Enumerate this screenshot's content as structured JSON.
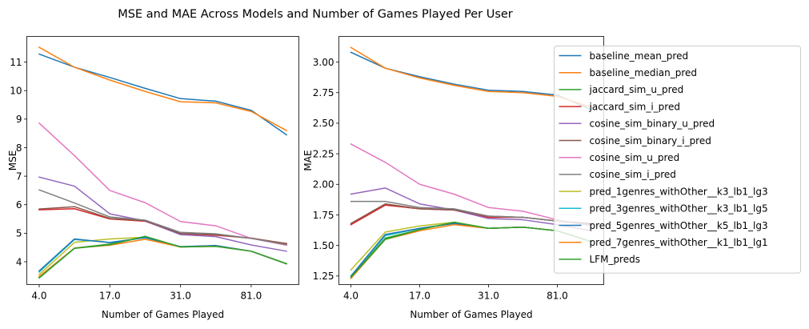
{
  "figure_title": "MSE and MAE Across Models and Number of Games Played Per User",
  "chart_data": [
    {
      "type": "line",
      "xlabel": "Number of Games Played",
      "ylabel": "MSE",
      "x": [
        0,
        1,
        2,
        3,
        4,
        5,
        6,
        7
      ],
      "x_tick_positions": [
        0,
        2,
        4,
        6
      ],
      "x_tick_labels": [
        "4.0",
        "17.0",
        "31.0",
        "81.0"
      ],
      "xlim": [
        -0.35,
        7.35
      ],
      "ylim": [
        3.2,
        11.9
      ],
      "y_ticks": [
        4,
        5,
        6,
        7,
        8,
        9,
        10,
        11
      ],
      "grid": false,
      "series": [
        {
          "name": "baseline_mean_pred",
          "color": "#1f77b4",
          "values": [
            11.28,
            10.82,
            10.46,
            10.08,
            9.72,
            9.63,
            9.31,
            8.45
          ]
        },
        {
          "name": "baseline_median_pred",
          "color": "#ff7f0e",
          "values": [
            11.52,
            10.82,
            10.37,
            9.97,
            9.61,
            9.57,
            9.27,
            8.6
          ]
        },
        {
          "name": "jaccard_sim_u_pred",
          "color": "#2ca02c",
          "values": [
            3.43,
            4.48,
            4.62,
            4.87,
            4.52,
            4.55,
            4.37,
            3.93
          ]
        },
        {
          "name": "jaccard_sim_i_pred",
          "color": "#d62728",
          "values": [
            5.82,
            5.86,
            5.5,
            5.42,
            4.98,
            4.93,
            4.83,
            4.63
          ]
        },
        {
          "name": "cosine_sim_binary_u_pred",
          "color": "#9467bd",
          "values": [
            6.97,
            6.65,
            5.68,
            5.43,
            4.95,
            4.88,
            4.59,
            4.37
          ]
        },
        {
          "name": "cosine_sim_binary_i_pred",
          "color": "#8c564b",
          "values": [
            5.85,
            5.93,
            5.52,
            5.44,
            4.99,
            4.95,
            4.82,
            4.64
          ]
        },
        {
          "name": "cosine_sim_u_pred",
          "color": "#e377c2",
          "values": [
            8.86,
            7.72,
            6.5,
            6.07,
            5.41,
            5.26,
            4.82,
            4.58
          ]
        },
        {
          "name": "cosine_sim_i_pred",
          "color": "#7f7f7f",
          "values": [
            6.52,
            6.06,
            5.57,
            5.46,
            5.03,
            4.98,
            4.82,
            4.6
          ]
        },
        {
          "name": "pred_1genres_withOther__k3_lb1_lg3",
          "color": "#bcbd22",
          "values": [
            3.55,
            4.68,
            4.8,
            4.86,
            4.52,
            4.55,
            4.37,
            3.93
          ]
        },
        {
          "name": "pred_3genres_withOther__k3_lb1_lg5",
          "color": "#17becf",
          "values": [
            3.64,
            4.78,
            4.68,
            4.84,
            4.53,
            4.56,
            4.37,
            3.93
          ]
        },
        {
          "name": "pred_5genres_withOther__k5_lb1_lg3",
          "color": "#1f77b4",
          "values": [
            3.68,
            4.8,
            4.67,
            4.85,
            4.53,
            4.57,
            4.37,
            3.93
          ]
        },
        {
          "name": "pred_7genres_withOther__k1_lb1_lg1",
          "color": "#ff7f0e",
          "values": [
            3.48,
            4.48,
            4.58,
            4.79,
            4.52,
            4.54,
            4.37,
            3.93
          ]
        },
        {
          "name": "LFM_preds",
          "color": "#2ca02c",
          "values": [
            3.44,
            4.47,
            4.6,
            4.89,
            4.52,
            4.54,
            4.37,
            3.93
          ]
        }
      ]
    },
    {
      "type": "line",
      "xlabel": "Number of Games Played",
      "ylabel": "MAE",
      "x": [
        0,
        1,
        2,
        3,
        4,
        5,
        6,
        7
      ],
      "x_tick_positions": [
        0,
        2,
        4,
        6
      ],
      "x_tick_labels": [
        "4.0",
        "17.0",
        "31.0",
        "81.0"
      ],
      "xlim": [
        -0.35,
        7.35
      ],
      "ylim": [
        1.18,
        3.21
      ],
      "y_ticks": [
        1.25,
        1.5,
        1.75,
        2.0,
        2.25,
        2.5,
        2.75,
        3.0
      ],
      "y_tick_labels": [
        "1.25",
        "1.50",
        "1.75",
        "2.00",
        "2.25",
        "2.50",
        "2.75",
        "3.00"
      ],
      "grid": false,
      "series": [
        {
          "name": "baseline_mean_pred",
          "color": "#1f77b4",
          "values": [
            3.08,
            2.95,
            2.88,
            2.82,
            2.77,
            2.76,
            2.73,
            2.61
          ]
        },
        {
          "name": "baseline_median_pred",
          "color": "#ff7f0e",
          "values": [
            3.12,
            2.95,
            2.87,
            2.81,
            2.76,
            2.75,
            2.72,
            2.63
          ]
        },
        {
          "name": "jaccard_sim_u_pred",
          "color": "#2ca02c",
          "values": [
            1.24,
            1.56,
            1.63,
            1.69,
            1.64,
            1.65,
            1.62,
            1.53
          ]
        },
        {
          "name": "jaccard_sim_i_pred",
          "color": "#d62728",
          "values": [
            1.67,
            1.83,
            1.8,
            1.79,
            1.73,
            1.73,
            1.7,
            1.67
          ]
        },
        {
          "name": "cosine_sim_binary_u_pred",
          "color": "#9467bd",
          "values": [
            1.92,
            1.97,
            1.84,
            1.79,
            1.72,
            1.71,
            1.67,
            1.62
          ]
        },
        {
          "name": "cosine_sim_binary_i_pred",
          "color": "#8c564b",
          "values": [
            1.68,
            1.84,
            1.8,
            1.79,
            1.74,
            1.73,
            1.7,
            1.68
          ]
        },
        {
          "name": "cosine_sim_u_pred",
          "color": "#e377c2",
          "values": [
            2.33,
            2.18,
            2.0,
            1.92,
            1.81,
            1.78,
            1.71,
            1.66
          ]
        },
        {
          "name": "cosine_sim_i_pred",
          "color": "#7f7f7f",
          "values": [
            1.86,
            1.86,
            1.81,
            1.8,
            1.74,
            1.73,
            1.7,
            1.67
          ]
        },
        {
          "name": "pred_1genres_withOther__k3_lb1_lg3",
          "color": "#bcbd22",
          "values": [
            1.3,
            1.61,
            1.66,
            1.69,
            1.64,
            1.65,
            1.62,
            1.53
          ]
        },
        {
          "name": "pred_3genres_withOther__k3_lb1_lg5",
          "color": "#17becf",
          "values": [
            1.25,
            1.58,
            1.64,
            1.68,
            1.64,
            1.65,
            1.62,
            1.53
          ]
        },
        {
          "name": "pred_5genres_withOther__k5_lb1_lg3",
          "color": "#1f77b4",
          "values": [
            1.25,
            1.59,
            1.64,
            1.68,
            1.64,
            1.65,
            1.62,
            1.53
          ]
        },
        {
          "name": "pred_7genres_withOther__k1_lb1_lg1",
          "color": "#ff7f0e",
          "values": [
            1.23,
            1.55,
            1.62,
            1.67,
            1.64,
            1.65,
            1.62,
            1.53
          ]
        },
        {
          "name": "LFM_preds",
          "color": "#2ca02c",
          "values": [
            1.24,
            1.55,
            1.63,
            1.69,
            1.64,
            1.65,
            1.62,
            1.53
          ]
        }
      ]
    }
  ],
  "legend": {
    "placement": "right",
    "entries": [
      {
        "label": "baseline_mean_pred",
        "color": "#1f77b4"
      },
      {
        "label": "baseline_median_pred",
        "color": "#ff7f0e"
      },
      {
        "label": "jaccard_sim_u_pred",
        "color": "#2ca02c"
      },
      {
        "label": "jaccard_sim_i_pred",
        "color": "#d62728"
      },
      {
        "label": "cosine_sim_binary_u_pred",
        "color": "#9467bd"
      },
      {
        "label": "cosine_sim_binary_i_pred",
        "color": "#8c564b"
      },
      {
        "label": "cosine_sim_u_pred",
        "color": "#e377c2"
      },
      {
        "label": "cosine_sim_i_pred",
        "color": "#7f7f7f"
      },
      {
        "label": "pred_1genres_withOther__k3_lb1_lg3",
        "color": "#bcbd22"
      },
      {
        "label": "pred_3genres_withOther__k3_lb1_lg5",
        "color": "#17becf"
      },
      {
        "label": "pred_5genres_withOther__k5_lb1_lg3",
        "color": "#1f77b4"
      },
      {
        "label": "pred_7genres_withOther__k1_lb1_lg1",
        "color": "#ff7f0e"
      },
      {
        "label": "LFM_preds",
        "color": "#2ca02c"
      }
    ]
  }
}
